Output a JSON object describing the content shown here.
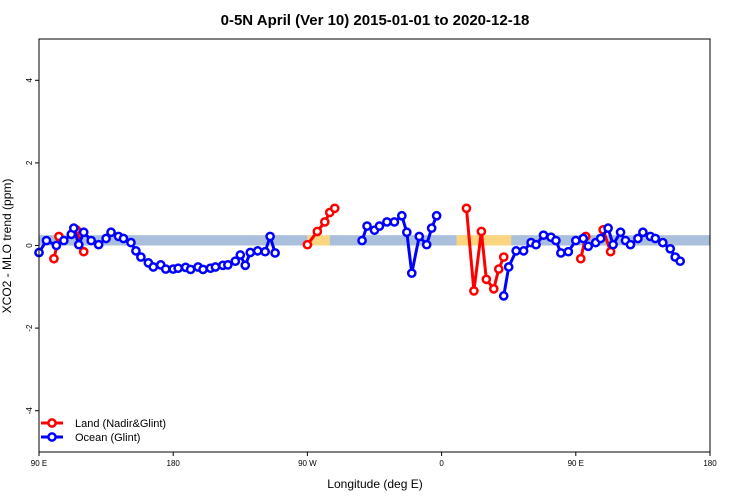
{
  "chart_data": {
    "type": "line",
    "title": "0-5N April (Ver 10)   2015-01-01 to 2020-12-18",
    "xlabel": "Longitude (deg E)",
    "ylabel": "XCO2 - MLO trend (ppm)",
    "xlim": [
      -90,
      180
    ],
    "ylim": [
      -5,
      5
    ],
    "x_ticks": [
      {
        "value": -90,
        "label": "90 E"
      },
      {
        "value": -36,
        "label": "180"
      },
      {
        "value": 18,
        "label": "90 W"
      },
      {
        "value": 72,
        "label": "0"
      },
      {
        "value": 126,
        "label": "90 E"
      },
      {
        "value": 180,
        "label": "180"
      }
    ],
    "y_ticks": [
      -4,
      -2,
      0,
      2,
      4
    ],
    "grid": false,
    "legend": {
      "position": "bottom-left"
    },
    "background_band": {
      "y_range": [
        0,
        0.25
      ],
      "segments": [
        {
          "x_range": [
            -90,
            18
          ],
          "color": "#a9bfdc"
        },
        {
          "x_range": [
            18,
            27
          ],
          "color": "#fbd57f"
        },
        {
          "x_range": [
            27,
            78
          ],
          "color": "#a9bfdc"
        },
        {
          "x_range": [
            78,
            100
          ],
          "color": "#fbd57f"
        },
        {
          "x_range": [
            100,
            180
          ],
          "color": "#a9bfdc"
        }
      ]
    },
    "series": [
      {
        "name": "Land (Nadir&Glint)",
        "color": "#ff0000",
        "segments": [
          [
            [
              -84,
              -0.32
            ],
            [
              -82,
              0.22
            ]
          ],
          [
            [
              -75,
              0.38
            ],
            [
              -72,
              -0.15
            ]
          ],
          [
            [
              18,
              0.02
            ],
            [
              22,
              0.34
            ],
            [
              25,
              0.57
            ],
            [
              27,
              0.8
            ],
            [
              29,
              0.9
            ]
          ],
          [
            [
              82,
              0.9
            ],
            [
              85,
              -1.1
            ],
            [
              88,
              0.34
            ],
            [
              90,
              -0.82
            ],
            [
              93,
              -1.05
            ],
            [
              95,
              -0.57
            ],
            [
              97,
              -0.28
            ]
          ],
          [
            [
              128,
              -0.32
            ],
            [
              130,
              0.22
            ]
          ],
          [
            [
              137,
              0.38
            ],
            [
              140,
              -0.15
            ]
          ]
        ]
      },
      {
        "name": "Ocean (Glint)",
        "color": "#0000ff",
        "segments": [
          [
            [
              -90,
              -0.17
            ],
            [
              -87,
              0.12
            ],
            [
              -83,
              0
            ],
            [
              -80,
              0.12
            ],
            [
              -77,
              0.27
            ],
            [
              -76,
              0.42
            ],
            [
              -74,
              0.02
            ],
            [
              -72,
              0.32
            ],
            [
              -69,
              0.12
            ],
            [
              -66,
              0.02
            ],
            [
              -63,
              0.17
            ],
            [
              -61,
              0.32
            ],
            [
              -58,
              0.22
            ],
            [
              -56,
              0.17
            ],
            [
              -53,
              0.07
            ],
            [
              -51,
              -0.13
            ],
            [
              -49,
              -0.28
            ],
            [
              -46,
              -0.42
            ],
            [
              -44,
              -0.52
            ],
            [
              -41,
              -0.47
            ],
            [
              -39,
              -0.57
            ],
            [
              -36,
              -0.57
            ],
            [
              -34,
              -0.55
            ],
            [
              -31,
              -0.53
            ],
            [
              -29,
              -0.58
            ],
            [
              -26,
              -0.52
            ],
            [
              -24,
              -0.58
            ],
            [
              -21,
              -0.55
            ],
            [
              -19,
              -0.52
            ],
            [
              -16,
              -0.48
            ],
            [
              -14,
              -0.47
            ],
            [
              -11,
              -0.38
            ],
            [
              -9,
              -0.23
            ],
            [
              -7,
              -0.48
            ],
            [
              -5,
              -0.17
            ],
            [
              -2,
              -0.13
            ],
            [
              1,
              -0.15
            ],
            [
              3,
              0.22
            ],
            [
              5,
              -0.18
            ]
          ],
          [
            [
              40,
              0.12
            ],
            [
              42,
              0.47
            ],
            [
              45,
              0.37
            ],
            [
              47,
              0.47
            ],
            [
              50,
              0.57
            ],
            [
              53,
              0.57
            ],
            [
              56,
              0.72
            ],
            [
              58,
              0.32
            ],
            [
              60,
              -0.67
            ],
            [
              63,
              0.22
            ],
            [
              66,
              0.02
            ],
            [
              68,
              0.42
            ],
            [
              70,
              0.72
            ]
          ],
          [
            [
              97,
              -1.22
            ],
            [
              99,
              -0.52
            ],
            [
              102,
              -0.13
            ],
            [
              105,
              -0.13
            ],
            [
              108,
              0.07
            ],
            [
              110,
              0.02
            ],
            [
              113,
              0.25
            ],
            [
              116,
              0.2
            ],
            [
              118,
              0.12
            ],
            [
              120,
              -0.18
            ],
            [
              123,
              -0.15
            ],
            [
              126,
              0.12
            ],
            [
              129,
              0.17
            ],
            [
              131,
              -0.02
            ],
            [
              134,
              0.07
            ],
            [
              136,
              0.17
            ],
            [
              139,
              0.42
            ],
            [
              141,
              0.02
            ],
            [
              144,
              0.32
            ],
            [
              146,
              0.12
            ],
            [
              148,
              0.02
            ],
            [
              151,
              0.17
            ],
            [
              153,
              0.32
            ],
            [
              156,
              0.22
            ],
            [
              158,
              0.17
            ],
            [
              161,
              0.07
            ],
            [
              164,
              -0.08
            ],
            [
              166,
              -0.28
            ],
            [
              168,
              -0.38
            ]
          ]
        ]
      }
    ]
  }
}
